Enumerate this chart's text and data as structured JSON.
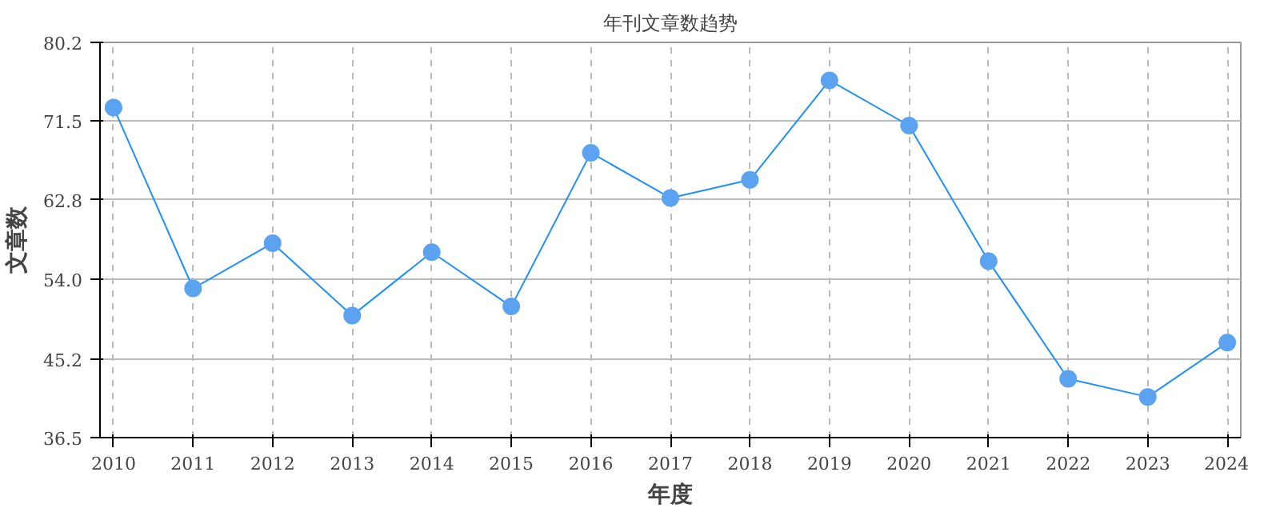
{
  "chart_data": {
    "type": "line",
    "title": "年刊文章数趋势",
    "xlabel": "年度",
    "ylabel": "文章数",
    "categories": [
      "2010",
      "2011",
      "2012",
      "2013",
      "2014",
      "2015",
      "2016",
      "2017",
      "2018",
      "2019",
      "2020",
      "2021",
      "2022",
      "2023",
      "2024"
    ],
    "series": [
      {
        "color": "#1e90ff",
        "values": [
          73,
          53,
          58,
          50,
          57,
          51,
          68,
          63,
          65,
          76,
          71,
          56,
          43,
          41,
          47
        ]
      }
    ],
    "ylim": [
      36.5,
      80.2
    ],
    "yticks": [
      36.5,
      45.2,
      {
        "value": 54,
        "label": "54.0"
      },
      62.8,
      71.5,
      80.2
    ],
    "grid": true,
    "marker": "circle"
  }
}
